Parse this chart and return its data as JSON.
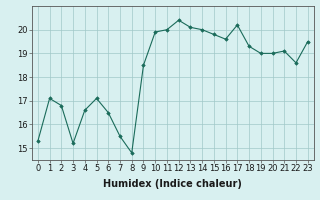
{
  "x": [
    0,
    1,
    2,
    3,
    4,
    5,
    6,
    7,
    8,
    9,
    10,
    11,
    12,
    13,
    14,
    15,
    16,
    17,
    18,
    19,
    20,
    21,
    22,
    23
  ],
  "y": [
    15.3,
    17.1,
    16.8,
    15.2,
    16.6,
    17.1,
    16.5,
    15.5,
    14.8,
    18.5,
    19.9,
    20.0,
    20.4,
    20.1,
    20.0,
    19.8,
    19.6,
    20.2,
    19.3,
    19.0,
    19.0,
    19.1,
    18.6,
    19.5
  ],
  "line_color": "#1a6b5a",
  "marker_color": "#1a6b5a",
  "bg_color": "#d8f0f0",
  "grid_color": "#a0c8c8",
  "xlabel": "Humidex (Indice chaleur)",
  "ylim": [
    14.5,
    21.0
  ],
  "yticks": [
    15,
    16,
    17,
    18,
    19,
    20
  ],
  "xticks": [
    0,
    1,
    2,
    3,
    4,
    5,
    6,
    7,
    8,
    9,
    10,
    11,
    12,
    13,
    14,
    15,
    16,
    17,
    18,
    19,
    20,
    21,
    22,
    23
  ],
  "tick_fontsize": 6,
  "label_fontsize": 7
}
